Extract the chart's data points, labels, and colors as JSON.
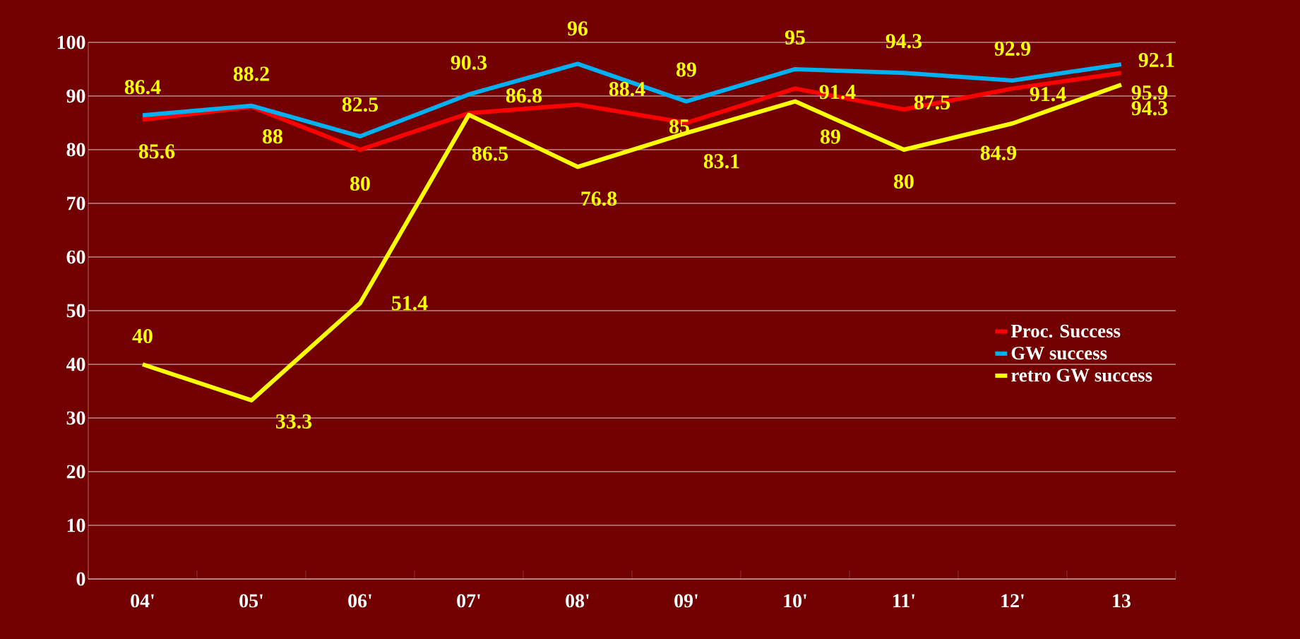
{
  "chart_data": {
    "type": "line",
    "categories": [
      "04'",
      "05'",
      "06'",
      "07'",
      "08'",
      "09'",
      "10'",
      "11'",
      "12'",
      "13"
    ],
    "series": [
      {
        "name": "Proc. Success",
        "color": "#ff0000",
        "values": [
          85.6,
          88,
          80,
          86.8,
          88.4,
          85,
          91.4,
          87.5,
          91.4,
          94.3
        ]
      },
      {
        "name": "GW success",
        "color": "#00b0f0",
        "values": [
          86.4,
          88.2,
          82.5,
          90.3,
          96,
          89,
          95,
          94.3,
          92.9,
          95.9
        ]
      },
      {
        "name": "retro GW success",
        "color": "#ffff00",
        "values": [
          40,
          33.3,
          51.4,
          86.5,
          76.8,
          83.1,
          89,
          80,
          84.9,
          92.1
        ]
      }
    ],
    "ylim": [
      0,
      100
    ],
    "yticks": [
      0,
      10,
      20,
      30,
      40,
      50,
      60,
      70,
      80,
      90,
      100
    ],
    "grid": "y",
    "legend": "right",
    "data_labels": true,
    "marker": "none",
    "line_style": "solid"
  }
}
